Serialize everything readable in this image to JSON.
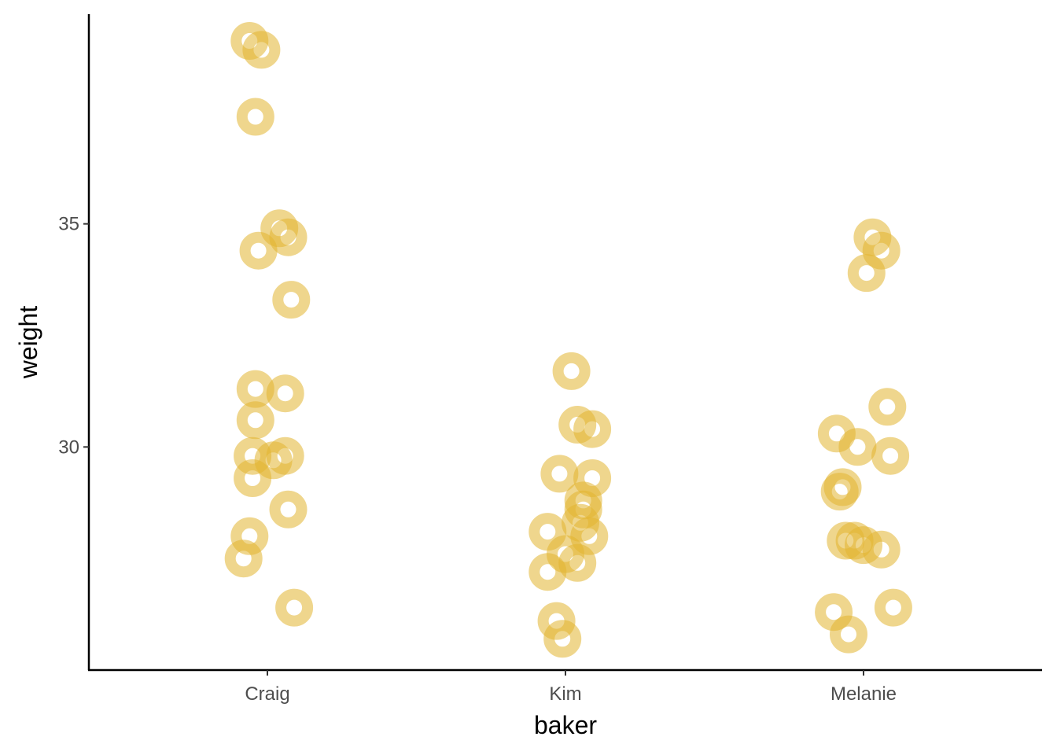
{
  "chart_data": {
    "type": "scatter",
    "title": "",
    "xlabel": "baker",
    "ylabel": "weight",
    "categories": [
      "Craig",
      "Kim",
      "Melanie"
    ],
    "ylim": [
      25.0,
      39.7
    ],
    "yticks": [
      30,
      35
    ],
    "ytick_labels": [
      "30",
      "35"
    ],
    "grid": false,
    "legend": "none",
    "point_style": "ring",
    "point_color": "#E1B530",
    "point_opacity": 0.55,
    "series": [
      {
        "category": "Craig",
        "points": [
          {
            "offset": -0.06,
            "y": 39.1
          },
          {
            "offset": -0.02,
            "y": 38.9
          },
          {
            "offset": -0.04,
            "y": 37.4
          },
          {
            "offset": 0.04,
            "y": 34.9
          },
          {
            "offset": 0.07,
            "y": 34.7
          },
          {
            "offset": -0.03,
            "y": 34.4
          },
          {
            "offset": 0.08,
            "y": 33.3
          },
          {
            "offset": -0.04,
            "y": 31.3
          },
          {
            "offset": 0.06,
            "y": 31.2
          },
          {
            "offset": -0.04,
            "y": 30.6
          },
          {
            "offset": -0.05,
            "y": 29.8
          },
          {
            "offset": 0.02,
            "y": 29.7
          },
          {
            "offset": 0.06,
            "y": 29.8
          },
          {
            "offset": -0.05,
            "y": 29.3
          },
          {
            "offset": 0.07,
            "y": 28.6
          },
          {
            "offset": -0.06,
            "y": 28.0
          },
          {
            "offset": -0.08,
            "y": 27.5
          },
          {
            "offset": 0.09,
            "y": 26.4
          }
        ]
      },
      {
        "category": "Kim",
        "points": [
          {
            "offset": 0.02,
            "y": 31.7
          },
          {
            "offset": 0.04,
            "y": 30.5
          },
          {
            "offset": 0.09,
            "y": 30.4
          },
          {
            "offset": -0.02,
            "y": 29.4
          },
          {
            "offset": 0.09,
            "y": 29.3
          },
          {
            "offset": 0.06,
            "y": 28.8
          },
          {
            "offset": 0.06,
            "y": 28.6
          },
          {
            "offset": 0.05,
            "y": 28.3
          },
          {
            "offset": -0.06,
            "y": 28.1
          },
          {
            "offset": 0.08,
            "y": 28.0
          },
          {
            "offset": 0.0,
            "y": 27.6
          },
          {
            "offset": 0.04,
            "y": 27.4
          },
          {
            "offset": -0.06,
            "y": 27.2
          },
          {
            "offset": -0.03,
            "y": 26.1
          },
          {
            "offset": -0.01,
            "y": 25.7
          }
        ]
      },
      {
        "category": "Melanie",
        "points": [
          {
            "offset": 0.03,
            "y": 34.7
          },
          {
            "offset": 0.06,
            "y": 34.4
          },
          {
            "offset": 0.01,
            "y": 33.9
          },
          {
            "offset": 0.08,
            "y": 30.9
          },
          {
            "offset": -0.09,
            "y": 30.3
          },
          {
            "offset": -0.02,
            "y": 30.0
          },
          {
            "offset": 0.09,
            "y": 29.8
          },
          {
            "offset": -0.07,
            "y": 29.1
          },
          {
            "offset": -0.08,
            "y": 29.0
          },
          {
            "offset": -0.06,
            "y": 27.9
          },
          {
            "offset": -0.03,
            "y": 27.9
          },
          {
            "offset": 0.0,
            "y": 27.8
          },
          {
            "offset": 0.06,
            "y": 27.7
          },
          {
            "offset": 0.1,
            "y": 26.4
          },
          {
            "offset": -0.1,
            "y": 26.3
          },
          {
            "offset": -0.05,
            "y": 25.8
          }
        ]
      }
    ]
  }
}
